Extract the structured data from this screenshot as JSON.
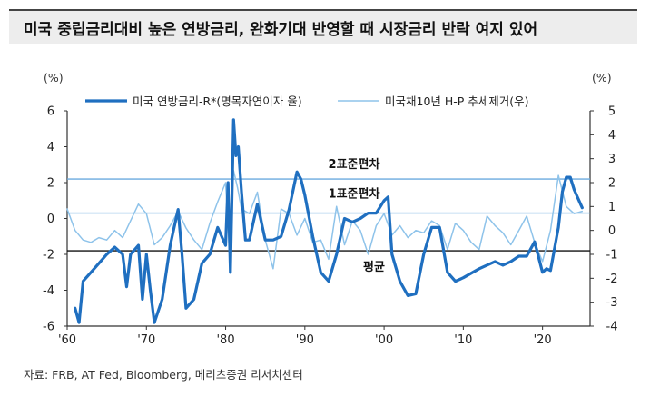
{
  "title": "미국 중립금리대비 높은 연방금리, 완화기대 반영할 때 시장금리 반락 여지 있어",
  "source": "자료: FRB, AT Fed, Bloomberg, 메리츠증권 리서치센터",
  "colors": {
    "series1": "#1f6fc0",
    "series2": "#8ec3ea",
    "refline": "#6aaadf",
    "meanline": "#111111"
  },
  "chart_data": {
    "type": "line",
    "left_unit": "(%)",
    "right_unit": "(%)",
    "ylim_left": [
      -6,
      6
    ],
    "ylim_right": [
      -4,
      5
    ],
    "left_ticks": [
      "6",
      "4",
      "2",
      "0",
      "-2",
      "-4",
      "-6"
    ],
    "right_ticks": [
      "5",
      "4",
      "3",
      "2",
      "1",
      "0",
      "-1",
      "-2",
      "-3",
      "-4"
    ],
    "xlim": [
      1960,
      2026
    ],
    "x_ticks": [
      {
        "value": 1960,
        "label": "'60"
      },
      {
        "value": 1970,
        "label": "'70"
      },
      {
        "value": 1980,
        "label": "'80"
      },
      {
        "value": 1990,
        "label": "'90"
      },
      {
        "value": 2000,
        "label": "'00"
      },
      {
        "value": 2010,
        "label": "'10"
      },
      {
        "value": 2020,
        "label": "'20"
      }
    ],
    "reference_lines": [
      {
        "label": "2표준편차",
        "value": 2.2,
        "axis": "left"
      },
      {
        "label": "1표준편차",
        "value": 0.3,
        "axis": "left"
      },
      {
        "label": "평균",
        "value": -1.8,
        "axis": "left"
      }
    ],
    "series": [
      {
        "name": "미국 연방금리-R*(명목자연이자 율)",
        "axis": "left",
        "x": [
          1961,
          1961.5,
          1962,
          1963,
          1964,
          1965,
          1966,
          1967,
          1967.5,
          1968,
          1969,
          1969.5,
          1970,
          1970.5,
          1971,
          1972,
          1973,
          1973.5,
          1974,
          1974.5,
          1975,
          1976,
          1977,
          1978,
          1979,
          1980,
          1980.3,
          1980.6,
          1981,
          1981.3,
          1981.6,
          1982,
          1982.5,
          1983,
          1984,
          1985,
          1986,
          1987,
          1988,
          1989,
          1989.5,
          1990,
          1991,
          1992,
          1993,
          1994,
          1995,
          1996,
          1997,
          1998,
          1999,
          2000,
          2000.5,
          2001,
          2002,
          2003,
          2004,
          2005,
          2006,
          2007,
          2008,
          2009,
          2010,
          2012,
          2014,
          2015,
          2016,
          2017,
          2018,
          2019,
          2020,
          2020.5,
          2021,
          2022,
          2022.5,
          2023,
          2023.5,
          2024,
          2024.5,
          2025
        ],
        "values": [
          -5.0,
          -5.8,
          -3.5,
          -3.0,
          -2.5,
          -2.0,
          -1.6,
          -2.0,
          -3.8,
          -2.0,
          -1.5,
          -4.5,
          -2.0,
          -4.0,
          -5.8,
          -4.5,
          -1.5,
          -0.5,
          0.5,
          -2.0,
          -5.0,
          -4.5,
          -2.5,
          -2.0,
          -0.5,
          -1.5,
          2.0,
          -3.0,
          5.5,
          3.5,
          4.0,
          1.5,
          -1.2,
          -1.2,
          0.8,
          -1.2,
          -1.2,
          -1.0,
          0.5,
          2.6,
          2.2,
          1.3,
          -1.0,
          -3.0,
          -3.5,
          -2.0,
          0.0,
          -0.2,
          0.0,
          0.3,
          0.3,
          1.0,
          1.2,
          -2.0,
          -3.5,
          -4.3,
          -4.2,
          -2.0,
          -0.5,
          -0.5,
          -3.0,
          -3.5,
          -3.3,
          -2.8,
          -2.4,
          -2.6,
          -2.4,
          -2.1,
          -2.1,
          -1.3,
          -3.0,
          -2.8,
          -2.9,
          -0.5,
          1.5,
          2.3,
          2.3,
          1.6,
          1.1,
          0.6
        ]
      },
      {
        "name": "미국채10년 H-P 추세제거(우)",
        "axis": "right",
        "x": [
          1960,
          1961,
          1962,
          1963,
          1964,
          1965,
          1966,
          1967,
          1968,
          1969,
          1970,
          1971,
          1972,
          1973,
          1974,
          1975,
          1976,
          1977,
          1978,
          1979,
          1980,
          1980.5,
          1981,
          1981.5,
          1982,
          1983,
          1984,
          1985,
          1986,
          1987,
          1988,
          1989,
          1990,
          1991,
          1992,
          1993,
          1994,
          1995,
          1996,
          1997,
          1998,
          1999,
          2000,
          2001,
          2002,
          2003,
          2004,
          2005,
          2006,
          2007,
          2008,
          2009,
          2010,
          2011,
          2012,
          2013,
          2014,
          2015,
          2016,
          2017,
          2018,
          2019,
          2020,
          2021,
          2022,
          2023,
          2024,
          2025
        ],
        "values": [
          0.9,
          0.0,
          -0.4,
          -0.5,
          -0.3,
          -0.4,
          0.0,
          -0.3,
          0.4,
          1.1,
          0.7,
          -0.6,
          -0.3,
          0.2,
          0.8,
          0.1,
          -0.4,
          -0.8,
          0.3,
          1.2,
          2.0,
          -1.0,
          2.5,
          1.8,
          0.9,
          0.7,
          1.6,
          -0.4,
          -1.6,
          0.9,
          0.7,
          -0.2,
          0.5,
          -0.5,
          -0.4,
          -1.2,
          1.0,
          -0.6,
          0.4,
          0.0,
          -1.0,
          0.2,
          0.7,
          -0.2,
          0.2,
          -0.3,
          0.0,
          -0.1,
          0.4,
          0.2,
          -0.8,
          0.3,
          0.0,
          -0.5,
          -0.8,
          0.6,
          0.2,
          -0.1,
          -0.6,
          0.0,
          0.6,
          -0.5,
          -1.3,
          0.0,
          2.3,
          1.0,
          0.7,
          0.8
        ]
      }
    ]
  }
}
